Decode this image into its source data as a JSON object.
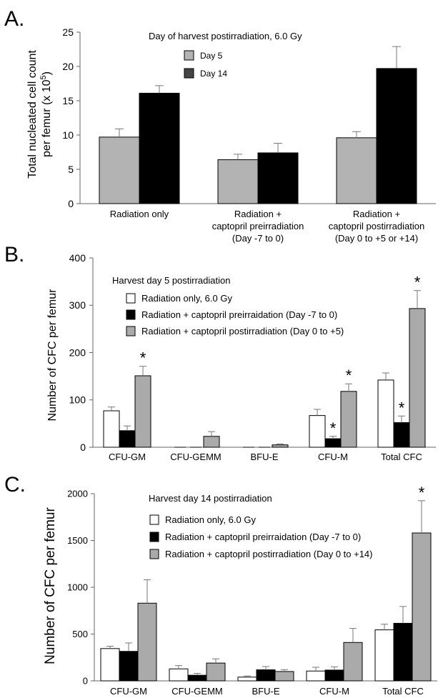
{
  "chart_data": [
    {
      "panel": "A.",
      "type": "bar",
      "title": "Day of harvest postirradiation, 6.0 Gy",
      "ylabel_line1": "Total nucleated cell count",
      "ylabel_line2_pre": "per femur  (x 10",
      "ylabel_sup": "5",
      "ylabel_line2_post": ")",
      "ylim": [
        0,
        25
      ],
      "yticks": [
        "0",
        "5",
        "10",
        "15",
        "20",
        "25"
      ],
      "categories": [
        [
          "Radiation only"
        ],
        [
          "Radiation +",
          "captopril preirradiation",
          "(Day -7 to  0)"
        ],
        [
          "Radiation +",
          "captopril postirradiation",
          "(Day 0 to +5 or +14)"
        ]
      ],
      "series": [
        {
          "name": "Day 5",
          "color": "#b3b3b3",
          "legend_color": "#b3b3b3",
          "values": [
            9.7,
            6.4,
            9.6
          ],
          "errors": [
            1.2,
            0.8,
            0.9
          ]
        },
        {
          "name": "Day 14",
          "color": "#000000",
          "legend_color": "#444444",
          "values": [
            16.1,
            7.4,
            19.7
          ],
          "errors": [
            1.1,
            1.4,
            3.2
          ]
        }
      ],
      "asterisks": []
    },
    {
      "panel": "B.",
      "type": "bar",
      "title": "Harvest day 5 postirradiation",
      "ylabel": "Number of CFC per femur",
      "ylim": [
        0,
        400
      ],
      "yticks": [
        "0",
        "100",
        "200",
        "300",
        "400"
      ],
      "categories": [
        "CFU-GM",
        "CFU-GEMM",
        "BFU-E",
        "CFU-M",
        "Total CFC"
      ],
      "series": [
        {
          "name": "Radiation only, 6.0 Gy",
          "color": "#ffffff",
          "values": [
            77,
            0,
            0,
            67,
            142
          ],
          "errors": [
            8,
            0,
            0,
            13,
            15
          ]
        },
        {
          "name": "Radiation + captopril preirraidation (Day -7 to 0)",
          "color": "#000000",
          "values": [
            35,
            0,
            0,
            18,
            52
          ],
          "errors": [
            10,
            0,
            0,
            5,
            14
          ]
        },
        {
          "name": "Radiation + captopril postirradiation (Day 0 to +5)",
          "color": "#aaaaaa",
          "values": [
            151,
            23,
            5,
            118,
            293
          ],
          "errors": [
            20,
            10,
            2,
            16,
            38
          ]
        }
      ],
      "asterisks": [
        {
          "category": 0,
          "series": 2
        },
        {
          "category": 3,
          "series": 1
        },
        {
          "category": 3,
          "series": 2
        },
        {
          "category": 4,
          "series": 1
        },
        {
          "category": 4,
          "series": 2
        }
      ]
    },
    {
      "panel": "C.",
      "type": "bar",
      "title": "Harvest day 14 postirradiation",
      "ylabel": "Number of CFC per femur",
      "ylim": [
        0,
        2000
      ],
      "yticks": [
        "0",
        "500",
        "1000",
        "1500",
        "2000"
      ],
      "categories": [
        "CFU-GM",
        "CFU-GEMM",
        "BFU-E",
        "CFU-M",
        "Total CFC"
      ],
      "series": [
        {
          "name": "Radiation only, 6.0 Gy",
          "color": "#ffffff",
          "values": [
            345,
            128,
            40,
            105,
            545
          ],
          "errors": [
            25,
            35,
            12,
            40,
            60
          ]
        },
        {
          "name": "Radiation + captopril preirraidation (Day -7 to 0)",
          "color": "#000000",
          "values": [
            315,
            60,
            118,
            115,
            615
          ],
          "errors": [
            90,
            20,
            35,
            35,
            180
          ]
        },
        {
          "name": "Radiation + captopril postirradiation (Day 0 to +14)",
          "color": "#aaaaaa",
          "values": [
            830,
            190,
            100,
            410,
            1580
          ],
          "errors": [
            250,
            45,
            20,
            150,
            345
          ]
        }
      ],
      "asterisks": [
        {
          "category": 4,
          "series": 2
        }
      ]
    }
  ]
}
